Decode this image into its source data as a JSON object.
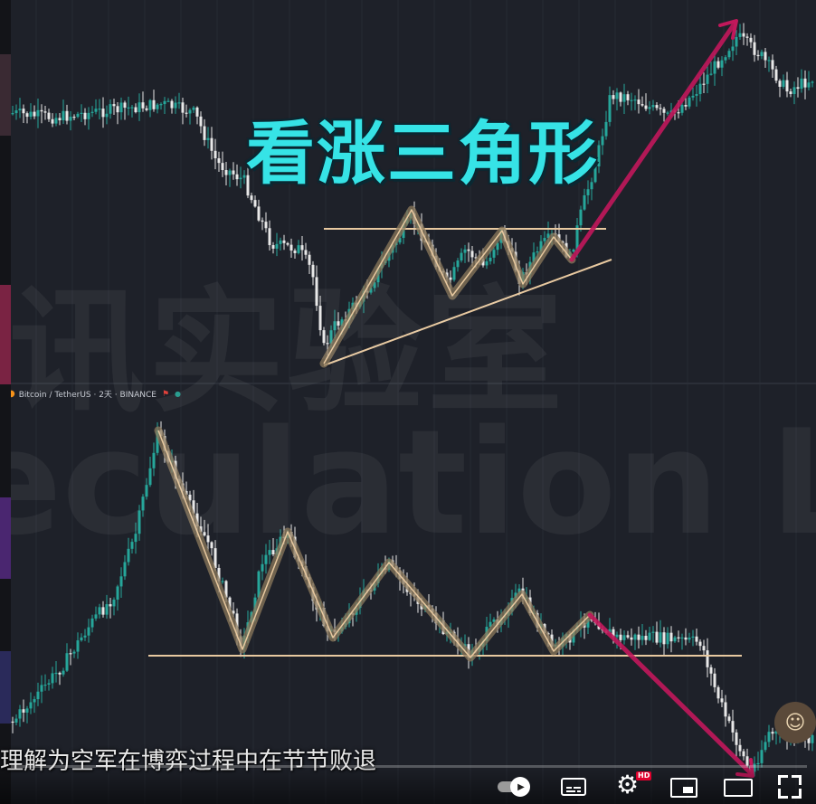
{
  "title": "看涨三角形",
  "pair_label": "Bitcoin / TetherUS · 2天 · BINANCE",
  "watermark_cn": "讯实验室",
  "watermark_en": "eculation Lab",
  "subtitle": "理解为空军在博弈过程中在节节败退",
  "controls": {
    "autoplay_icon": "play-icon",
    "hd_badge": "HD",
    "gear_icon": "⚙"
  },
  "colors": {
    "background": "#1e2129",
    "bull": "#26a69a",
    "bear": "#e8e8e8",
    "level_line": "#e8c9a0",
    "zigzag": "#8c7a5c",
    "arrow": "#c2185b",
    "title": "#36e3e6"
  },
  "chart_data": [
    {
      "type": "candlestick",
      "title": "看涨三角形",
      "annotations": [
        "horizontal resistance line",
        "rising support line",
        "zigzag swing path",
        "breakout arrow up"
      ],
      "grid": true
    },
    {
      "type": "candlestick",
      "series_label": "Bitcoin / TetherUS · 2天 · BINANCE",
      "annotations": [
        "horizontal support line",
        "zigzag swing path",
        "breakdown arrow down"
      ],
      "grid": true
    }
  ]
}
